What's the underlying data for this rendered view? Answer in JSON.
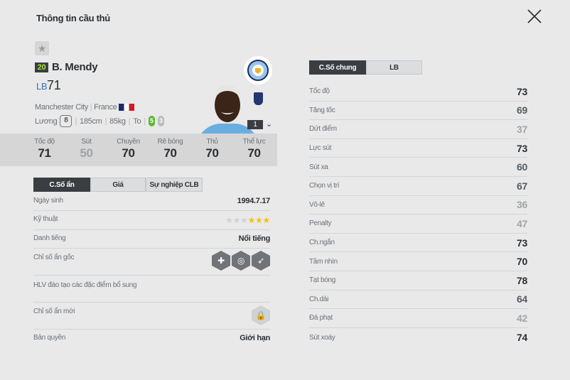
{
  "title": "Thông tin cầu thủ",
  "player": {
    "overall_badge": "20",
    "name": "B. Mendy",
    "position": "LB",
    "ovr": "71",
    "club": "Manchester City",
    "nation": "France",
    "salary_label": "Lương",
    "salary": "8",
    "height": "185cm",
    "weight": "85kg",
    "body": "To",
    "weak_foot": "5",
    "strong_foot": "3",
    "level": "1"
  },
  "summary": [
    {
      "label": "Tốc độ",
      "value": "71"
    },
    {
      "label": "Sút",
      "value": "50"
    },
    {
      "label": "Chuyền",
      "value": "70"
    },
    {
      "label": "Rê bóng",
      "value": "70"
    },
    {
      "label": "Thủ",
      "value": "70"
    },
    {
      "label": "Thể lực",
      "value": "70"
    }
  ],
  "left_tabs": [
    "C.Số ẩn",
    "Giá",
    "Sự nghiệp CLB"
  ],
  "info": {
    "birth_label": "Ngày sinh",
    "birth": "1994.7.17",
    "skill_label": "Kỹ thuật",
    "skill_stars": 3,
    "skill_max": 6,
    "fame_label": "Danh tiếng",
    "fame": "Nổi tiếng",
    "traits_label": "Chỉ số ẩn gốc",
    "traits": [
      "ambulance-icon",
      "long-throw-icon",
      "speed-dribbler-icon"
    ],
    "coach_label": "HLV đào tạo các đặc điểm bổ sung",
    "new_traits_label": "Chỉ số ẩn mới",
    "license_label": "Bản quyền",
    "license": "Giới hạn"
  },
  "right_tabs": [
    "C.Số chung",
    "LB"
  ],
  "stats": [
    {
      "label": "Tốc độ",
      "value": 73
    },
    {
      "label": "Tăng tốc",
      "value": 69
    },
    {
      "label": "Dứt điểm",
      "value": 37
    },
    {
      "label": "Lực sút",
      "value": 73
    },
    {
      "label": "Sút xa",
      "value": 60
    },
    {
      "label": "Chọn vị trí",
      "value": 67
    },
    {
      "label": "Vô-lê",
      "value": 36
    },
    {
      "label": "Penalty",
      "value": 47
    },
    {
      "label": "Ch.ngắn",
      "value": 73
    },
    {
      "label": "Tầm nhìn",
      "value": 70
    },
    {
      "label": "Tạt bóng",
      "value": 78
    },
    {
      "label": "Ch.dài",
      "value": 64
    },
    {
      "label": "Đá phạt",
      "value": 42
    },
    {
      "label": "Sút xoáy",
      "value": 74
    }
  ],
  "colors": {
    "high": "#2b2f33",
    "mid": "#555c63",
    "low": "#a0a4a8",
    "accent": "#a6e22e"
  }
}
